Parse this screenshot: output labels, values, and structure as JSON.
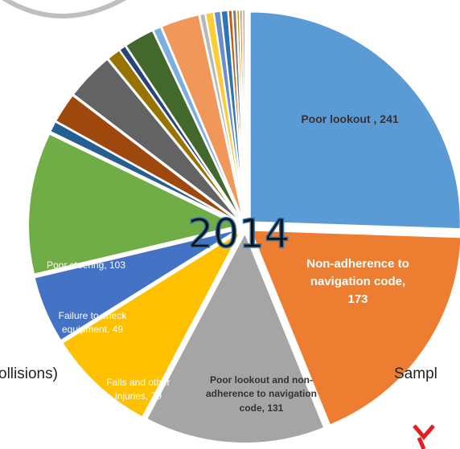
{
  "chart_data": {
    "type": "pie",
    "title": "2014",
    "categories": [
      "Poor lookout , 241",
      "Non-adherence to navigation code, 173",
      "Poor lookout and non-adherence to navigation code, 131",
      "Falls and other injuries, 79",
      "Failure to check equipment, 49",
      "Poor steering, 103",
      null,
      null,
      null,
      null,
      null,
      null,
      null,
      null,
      null,
      null,
      null,
      null,
      null,
      null,
      null,
      null,
      null
    ],
    "values": [
      241,
      173,
      131,
      79,
      49,
      103,
      8,
      22,
      35,
      10,
      5,
      22,
      6,
      28,
      4,
      6,
      5,
      5,
      3,
      3,
      2,
      2,
      2
    ],
    "colors": [
      "#5b9bd5",
      "#ed7d31",
      "#a5a5a5",
      "#ffc000",
      "#4472c4",
      "#70ad47",
      "#255e91",
      "#9e480e",
      "#636363",
      "#997300",
      "#264478",
      "#43682b",
      "#7cafdd",
      "#f1975a",
      "#b7b7b7",
      "#ffcd33",
      "#698ed0",
      "#2e75b6",
      "#c55a11",
      "#7f7f7f",
      "#bf8f00",
      "#ed7d31",
      "#a5a5a5"
    ],
    "annotations": [
      "ollisions)",
      "Sampl"
    ]
  }
}
